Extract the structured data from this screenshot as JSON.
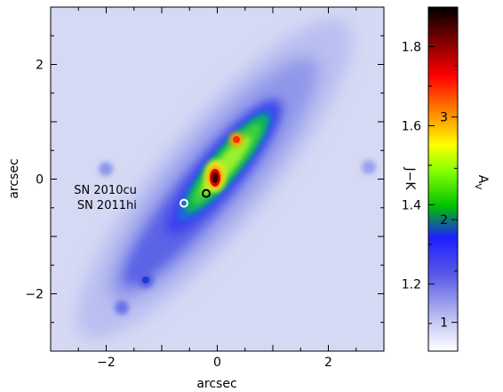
{
  "chart_data": {
    "type": "heatmap",
    "title": "",
    "xlabel": "arcsec",
    "ylabel": "arcsec",
    "xlim": [
      -3,
      3
    ],
    "ylim": [
      -3,
      3
    ],
    "xticks": [
      -2,
      0,
      2
    ],
    "yticks": [
      -2,
      0,
      2
    ],
    "grid": false,
    "colorbar": {
      "left_label": "J−K",
      "left_range": [
        1.03,
        1.9
      ],
      "left_ticks": [
        1.2,
        1.4,
        1.6,
        1.8
      ],
      "right_label": "A",
      "right_label_subscript": "V",
      "right_range": [
        0.72,
        4.07
      ],
      "right_ticks": [
        1,
        2,
        3,
        4
      ],
      "colors": [
        "#ffffff",
        "#c8cdf4",
        "#5a5ae6",
        "#1e1eff",
        "#00c000",
        "#80ff00",
        "#ffff00",
        "#ff8000",
        "#ff0000",
        "#800000",
        "#000000"
      ]
    },
    "features": [
      {
        "name": "nucleus",
        "x": 0.0,
        "y": 0.0,
        "a_v": 4.0
      },
      {
        "name": "secondary peak",
        "x": 0.37,
        "y": 0.68,
        "a_v": 3.3
      },
      {
        "name": "knot",
        "x": -1.25,
        "y": -1.78,
        "a_v": 1.6
      },
      {
        "name": "knot",
        "x": -1.65,
        "y": -2.25,
        "a_v": 1.3
      },
      {
        "name": "knot",
        "x": -2.0,
        "y": 0.15,
        "a_v": 1.2
      },
      {
        "name": "knot",
        "x": 2.75,
        "y": 0.2,
        "a_v": 1.2
      }
    ],
    "markers": [
      {
        "label": "SN 2010cu",
        "x": -0.2,
        "y": -0.25,
        "color": "#000000"
      },
      {
        "label": "SN 2011hi",
        "x": -0.6,
        "y": -0.42,
        "color": "#ffffff"
      }
    ]
  }
}
